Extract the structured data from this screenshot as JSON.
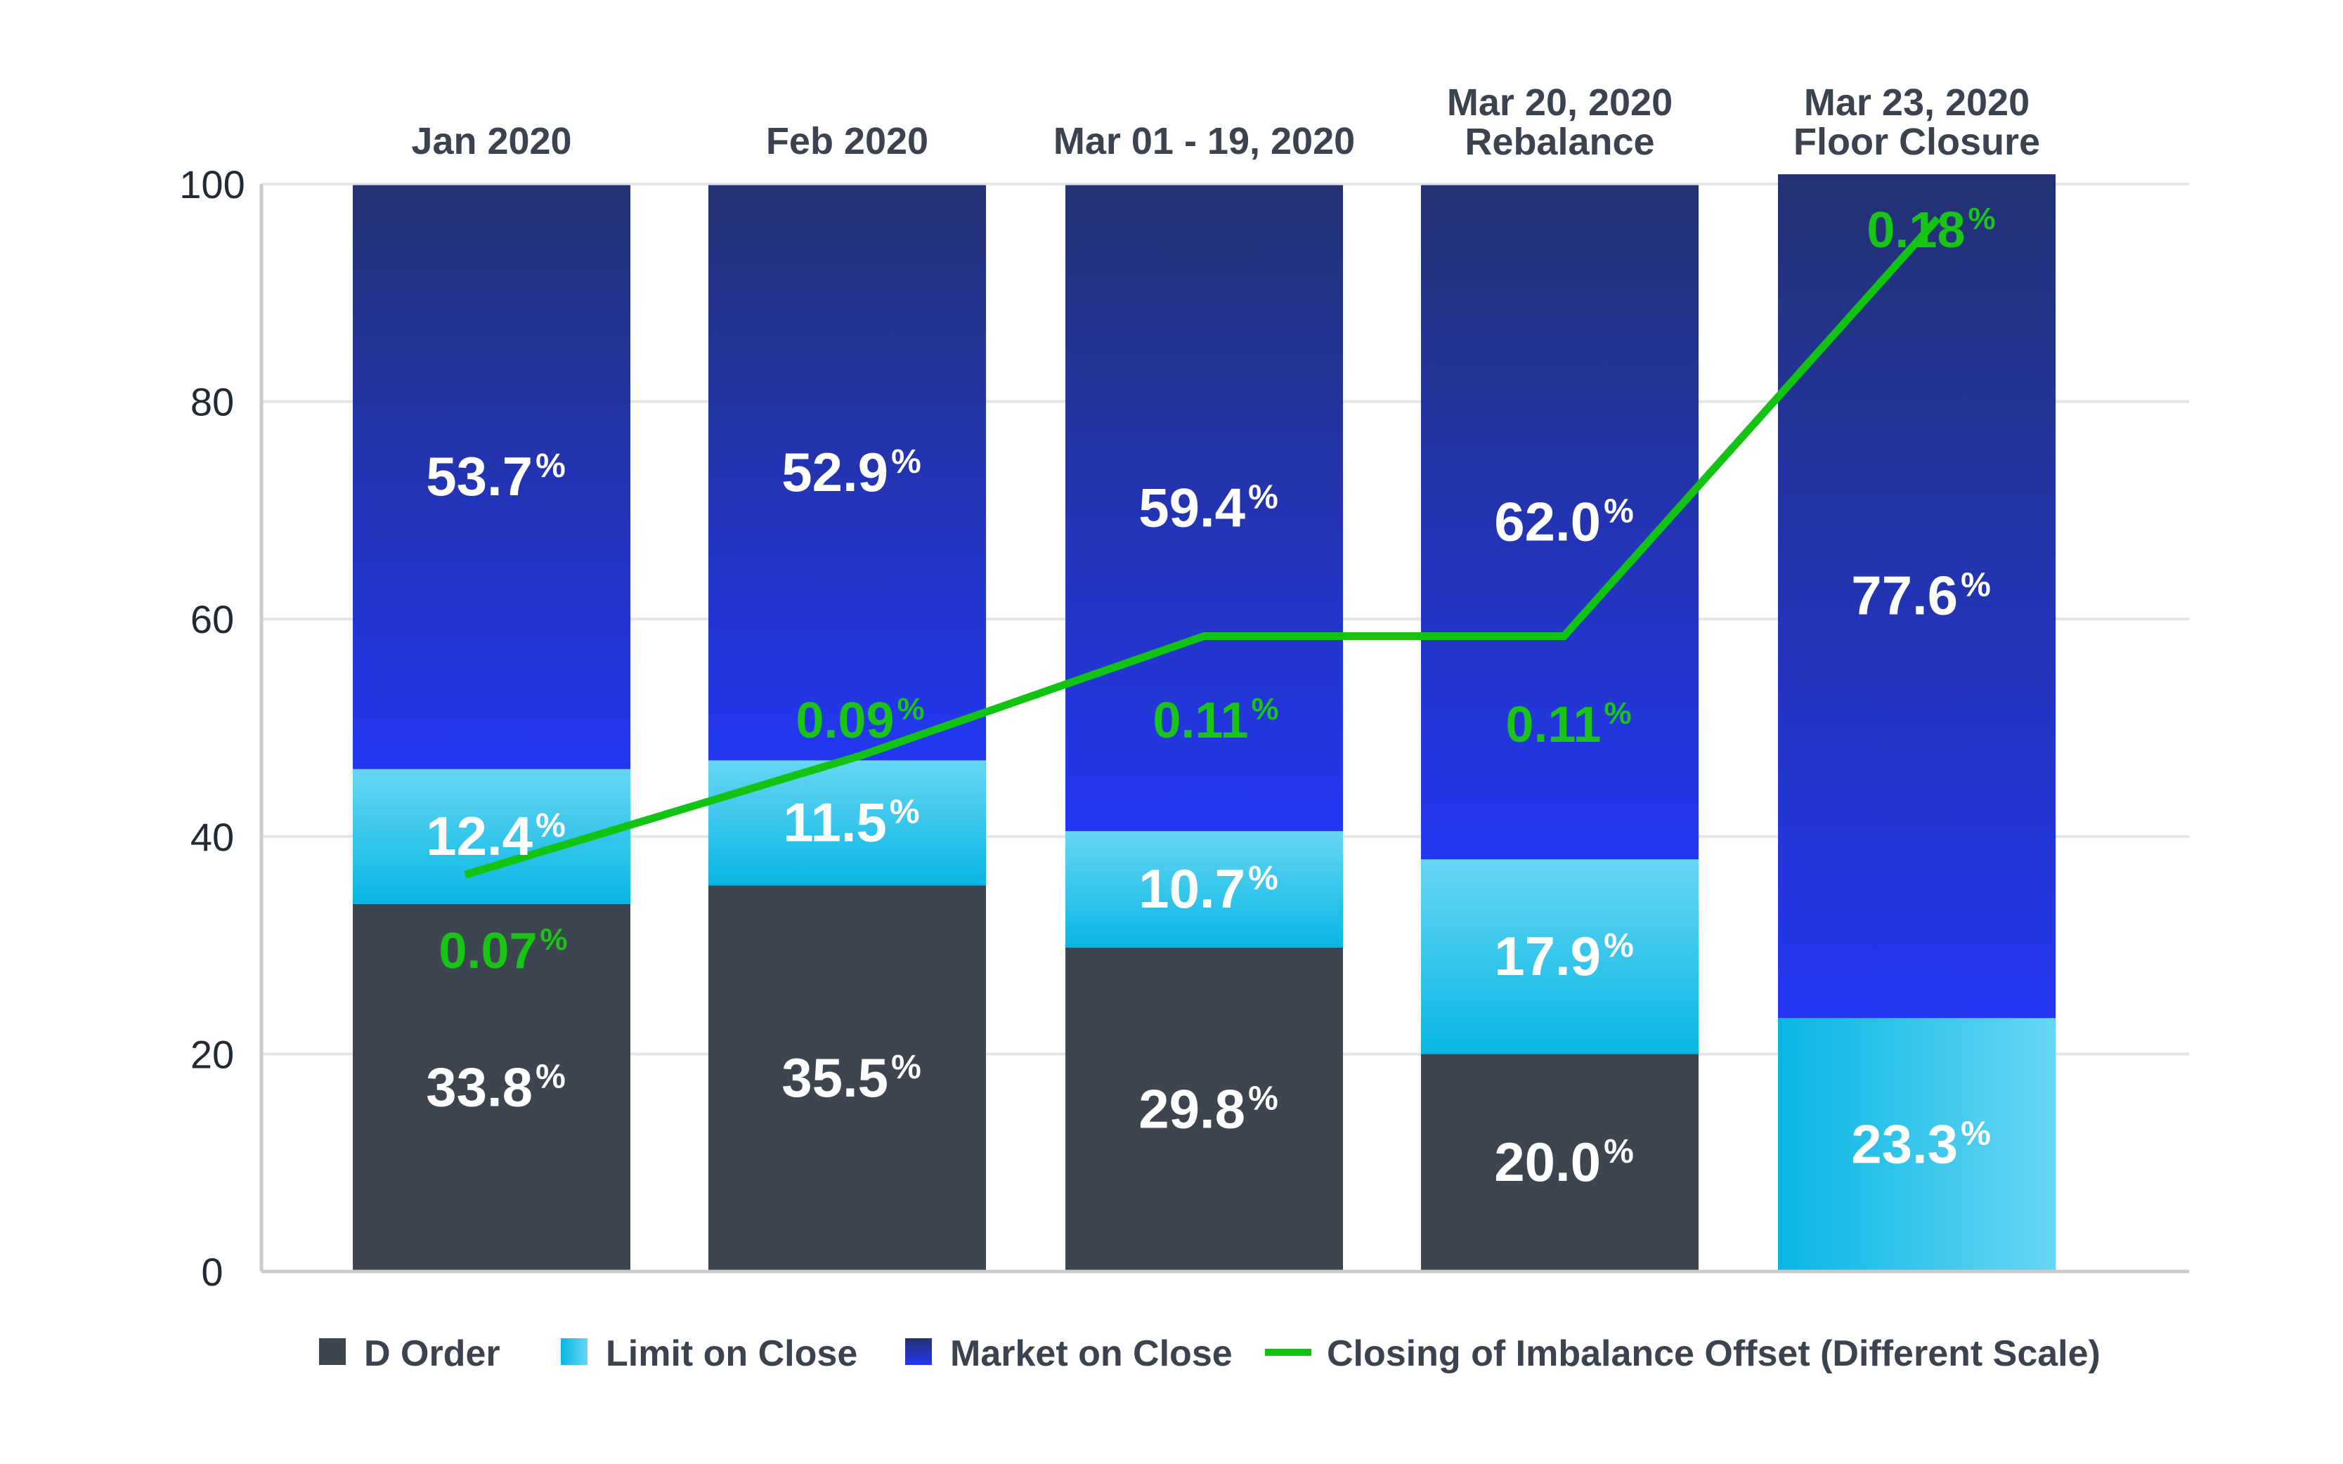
{
  "chart_data": {
    "type": "bar",
    "stacked": true,
    "categories": [
      [
        "Jan 2020"
      ],
      [
        "Feb 2020"
      ],
      [
        "Mar 01 - 19, 2020"
      ],
      [
        "Mar 20, 2020",
        "Rebalance"
      ],
      [
        "Mar 23, 2020",
        "Floor Closure"
      ]
    ],
    "ylim": [
      0,
      100
    ],
    "yticks": [
      0,
      20,
      40,
      60,
      80,
      100
    ],
    "grid": true,
    "legend_position": "bottom",
    "series": [
      {
        "name": "D Order",
        "values": [
          33.8,
          35.5,
          29.8,
          20.0,
          0
        ],
        "labels": [
          "33.8",
          "35.5",
          "29.8",
          "20.0",
          null
        ],
        "color": "#3d4550"
      },
      {
        "name": "Limit on Close",
        "values": [
          12.4,
          11.5,
          10.7,
          17.9,
          23.3
        ],
        "labels": [
          "12.4",
          "11.5",
          "10.7",
          "17.9",
          "23.3"
        ],
        "color": "#2ec8ee",
        "color_dark": "#08b6e3",
        "color_light": "#67d6f4"
      },
      {
        "name": "Market on Close",
        "values": [
          53.7,
          52.9,
          59.4,
          62.0,
          77.6
        ],
        "labels": [
          "53.7",
          "52.9",
          "59.4",
          "62.0",
          "77.6"
        ],
        "color": "#2536f0",
        "color_dark": "#233272",
        "color_light": "#2337f2"
      }
    ],
    "line_series": {
      "name": "Closing of Imbalance Offset (Different Scale)",
      "values": [
        0.07,
        0.09,
        0.11,
        0.11,
        0.18
      ],
      "labels": [
        "0.07",
        "0.09",
        "0.11",
        "0.11",
        "0.18"
      ],
      "color": "#12c312",
      "secondary_scale": true
    },
    "percent_sign": "%"
  }
}
